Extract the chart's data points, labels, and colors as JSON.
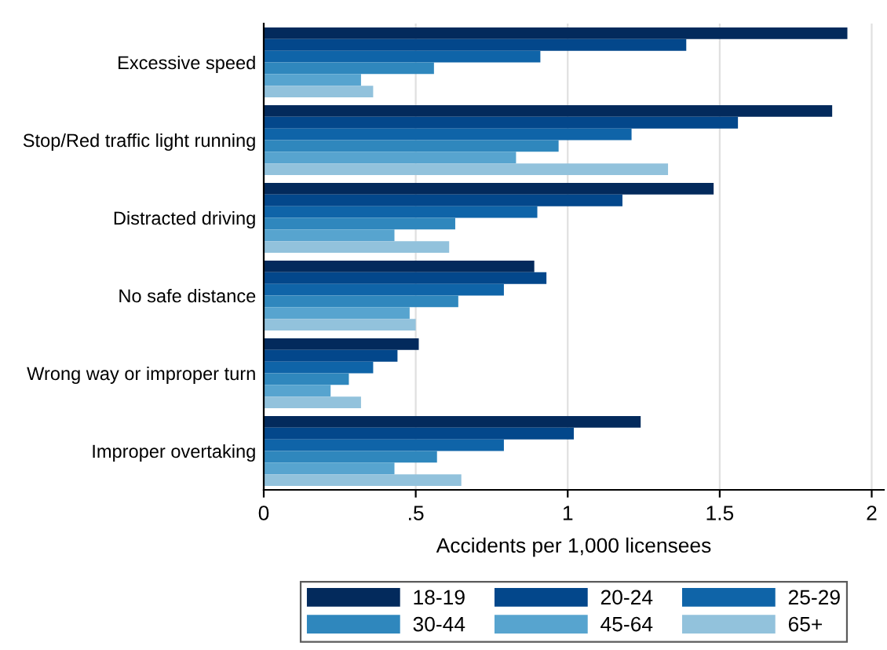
{
  "chart_data": {
    "type": "bar",
    "orientation": "horizontal",
    "xlabel": "Accidents per 1,000 licensees",
    "categories": [
      "Excessive speed",
      "Stop/Red traffic light running",
      "Distracted driving",
      "No safe distance",
      "Wrong way or improper turn",
      "Improper overtaking"
    ],
    "series": [
      {
        "name": "18-19",
        "color": "#032a5c",
        "values": [
          1.92,
          1.87,
          1.48,
          0.89,
          0.51,
          1.24
        ]
      },
      {
        "name": "20-24",
        "color": "#03478b",
        "values": [
          1.39,
          1.56,
          1.18,
          0.93,
          0.44,
          1.02
        ]
      },
      {
        "name": "25-29",
        "color": "#0f64a8",
        "values": [
          0.91,
          1.21,
          0.9,
          0.79,
          0.36,
          0.79
        ]
      },
      {
        "name": "30-44",
        "color": "#2f87bd",
        "values": [
          0.56,
          0.97,
          0.63,
          0.64,
          0.28,
          0.57
        ]
      },
      {
        "name": "45-64",
        "color": "#57a4cf",
        "values": [
          0.32,
          0.83,
          0.43,
          0.48,
          0.22,
          0.43
        ]
      },
      {
        "name": "65+",
        "color": "#92c2dc",
        "values": [
          0.36,
          1.33,
          0.61,
          0.5,
          0.32,
          0.65
        ]
      }
    ],
    "xlim": [
      0,
      2.04
    ],
    "xticks": [
      0,
      {
        "value": 0.5,
        "label": ".5"
      },
      1,
      1.5,
      2
    ],
    "grid": "x",
    "legend": "bottom"
  }
}
